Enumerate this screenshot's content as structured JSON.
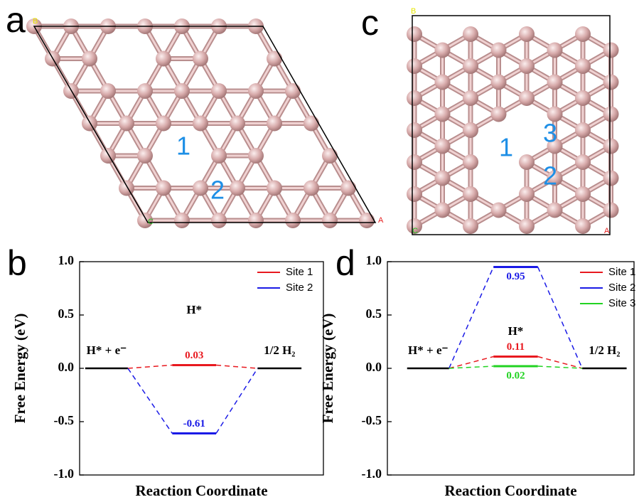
{
  "panels": [
    {
      "label": "a",
      "axes": [
        "B",
        "C",
        "A"
      ],
      "sites": [
        "1",
        "2"
      ]
    },
    {
      "label": "c",
      "axes": [
        "B",
        "C",
        "A"
      ],
      "sites": [
        "1",
        "3",
        "2"
      ]
    }
  ],
  "chart_data": [
    {
      "type": "energy_diagram",
      "panel_label": "b",
      "ylabel": "Free Energy (eV)",
      "xlabel": "Reaction Coordinate",
      "states": [
        "H* + e⁻",
        "H*",
        "1/2 H₂"
      ],
      "ylim": [
        -1,
        1
      ],
      "yticks": [
        {
          "value": -1,
          "label": "-1.0"
        },
        -0.5,
        {
          "value": 0,
          "label": "0.0"
        },
        0.5,
        {
          "value": 1,
          "label": "1.0"
        }
      ],
      "series": [
        {
          "name": "Site 1",
          "color": "#e8191f",
          "values": [
            0,
            0.03,
            0
          ]
        },
        {
          "name": "Site 2",
          "color": "#1a1ae6",
          "values": [
            0,
            -0.61,
            0
          ]
        }
      ]
    },
    {
      "type": "energy_diagram",
      "panel_label": "d",
      "ylabel": "Free Energy (eV)",
      "xlabel": "Reaction Coordinate",
      "states": [
        "H* + e⁻",
        "H*",
        "1/2 H₂"
      ],
      "ylim": [
        -1,
        1
      ],
      "yticks": [
        {
          "value": -1,
          "label": "-1.0"
        },
        -0.5,
        {
          "value": 0,
          "label": "0.0"
        },
        0.5,
        {
          "value": 1,
          "label": "1.0"
        }
      ],
      "series": [
        {
          "name": "Site 1",
          "color": "#e8191f",
          "values": [
            0,
            0.11,
            0
          ]
        },
        {
          "name": "Site 2",
          "color": "#1a1ae6",
          "values": [
            0,
            0.95,
            0
          ]
        },
        {
          "name": "Site 3",
          "color": "#22d322",
          "values": [
            0,
            0.02,
            0
          ]
        }
      ]
    }
  ]
}
